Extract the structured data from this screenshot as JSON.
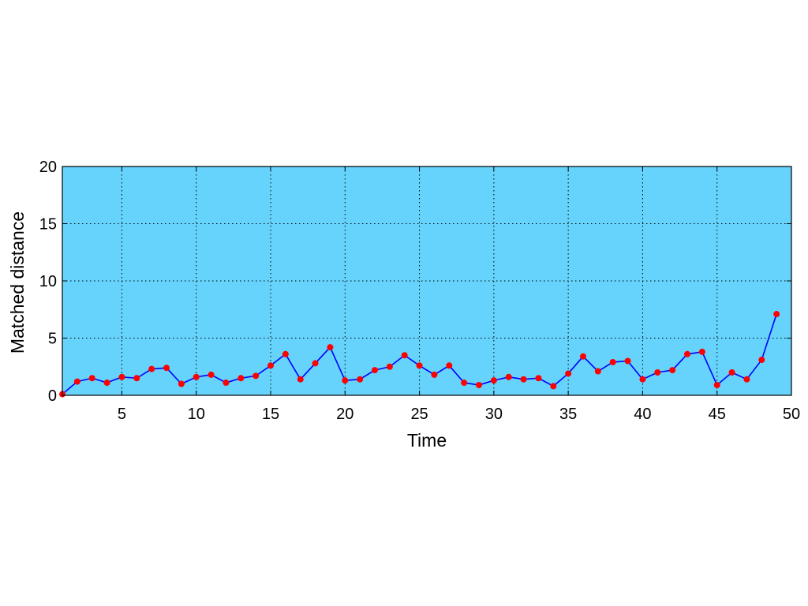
{
  "chart_data": {
    "type": "line",
    "title": "",
    "xlabel": "Time",
    "ylabel": "Matched distance",
    "xlim": [
      1,
      50
    ],
    "ylim": [
      0,
      20
    ],
    "x_ticks": [
      5,
      10,
      15,
      20,
      25,
      30,
      35,
      40,
      45,
      50
    ],
    "y_ticks": [
      0,
      5,
      10,
      15,
      20
    ],
    "grid": true,
    "legend": "none",
    "colors": {
      "plot_background": "#66d3fc",
      "line": "#0000ff",
      "marker": "#ff0000"
    },
    "series": [
      {
        "x": [
          1,
          2,
          3,
          4,
          5,
          6,
          7,
          8,
          9,
          10,
          11,
          12,
          13,
          14,
          15,
          16,
          17,
          18,
          19,
          20,
          21,
          22,
          23,
          24,
          25,
          26,
          27,
          28,
          29,
          30,
          31,
          32,
          33,
          34,
          35,
          36,
          37,
          38,
          39,
          40,
          41,
          42,
          43,
          44,
          45,
          46,
          47,
          48,
          49
        ],
        "values": [
          0.1,
          1.2,
          1.5,
          1.1,
          1.6,
          1.5,
          2.3,
          2.4,
          1.0,
          1.6,
          1.8,
          1.1,
          1.5,
          1.7,
          2.6,
          3.6,
          1.4,
          2.8,
          4.2,
          1.3,
          1.4,
          2.2,
          2.5,
          3.5,
          2.6,
          1.8,
          2.6,
          1.1,
          0.9,
          1.3,
          1.6,
          1.4,
          1.5,
          0.8,
          1.9,
          3.4,
          2.1,
          2.9,
          3.0,
          1.4,
          2.0,
          2.2,
          3.6,
          3.8,
          0.9,
          2.0,
          1.4,
          3.1,
          7.1
        ]
      }
    ]
  }
}
